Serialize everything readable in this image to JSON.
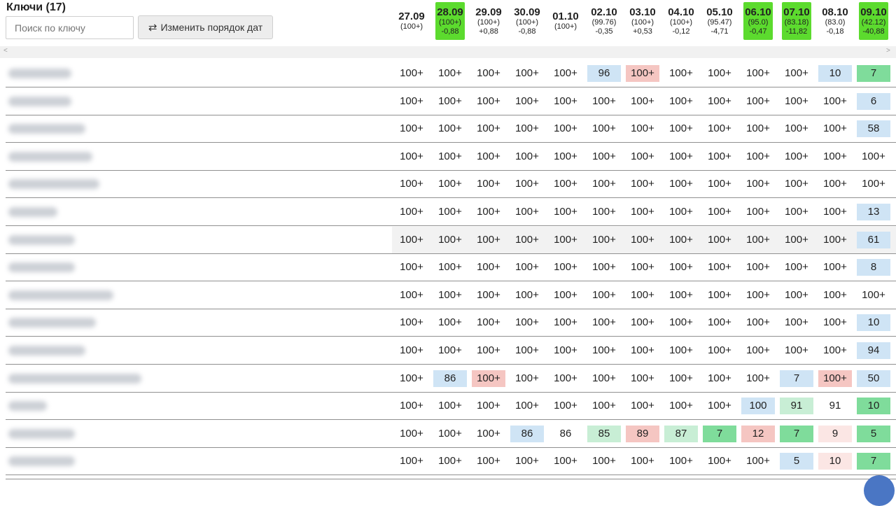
{
  "header": {
    "title": "Ключи (17)",
    "search_placeholder": "Поиск по ключу",
    "reorder_label": "Изменить порядок дат",
    "reorder_icon": "swap-arrows-icon"
  },
  "colors": {
    "highlight": "#5cdb2e",
    "blue": "#cfe4f5",
    "pink": "#f5c6c2",
    "light_green": "#c8eed5",
    "green": "#7fdc9b",
    "light_pink": "#fbe6e4"
  },
  "dates": [
    {
      "date": "27.09",
      "sub": "(100+)",
      "change": "",
      "highlight": false
    },
    {
      "date": "28.09",
      "sub": "(100+)",
      "change": "-0,88",
      "highlight": true
    },
    {
      "date": "29.09",
      "sub": "(100+)",
      "change": "+0,88",
      "highlight": false
    },
    {
      "date": "30.09",
      "sub": "(100+)",
      "change": "-0,88",
      "highlight": false
    },
    {
      "date": "01.10",
      "sub": "(100+)",
      "change": "",
      "highlight": false
    },
    {
      "date": "02.10",
      "sub": "(99.76)",
      "change": "-0,35",
      "highlight": false
    },
    {
      "date": "03.10",
      "sub": "(100+)",
      "change": "+0,53",
      "highlight": false
    },
    {
      "date": "04.10",
      "sub": "(100+)",
      "change": "-0,12",
      "highlight": false
    },
    {
      "date": "05.10",
      "sub": "(95.47)",
      "change": "-4,71",
      "highlight": false
    },
    {
      "date": "06.10",
      "sub": "(95.0)",
      "change": "-0,47",
      "highlight": true
    },
    {
      "date": "07.10",
      "sub": "(83.18)",
      "change": "-11,82",
      "highlight": true
    },
    {
      "date": "08.10",
      "sub": "(83.0)",
      "change": "-0,18",
      "highlight": false
    },
    {
      "date": "09.10",
      "sub": "(42.12)",
      "change": "-40,88",
      "highlight": true
    }
  ],
  "rows": [
    {
      "cells": [
        [
          "100+",
          ""
        ],
        [
          "100+",
          ""
        ],
        [
          "100+",
          ""
        ],
        [
          "100+",
          ""
        ],
        [
          "100+",
          ""
        ],
        [
          "96",
          "blue"
        ],
        [
          "100+",
          "pink"
        ],
        [
          "100+",
          ""
        ],
        [
          "100+",
          ""
        ],
        [
          "100+",
          ""
        ],
        [
          "100+",
          ""
        ],
        [
          "10",
          "blue"
        ],
        [
          "7",
          "green"
        ]
      ]
    },
    {
      "cells": [
        [
          "100+",
          ""
        ],
        [
          "100+",
          ""
        ],
        [
          "100+",
          ""
        ],
        [
          "100+",
          ""
        ],
        [
          "100+",
          ""
        ],
        [
          "100+",
          ""
        ],
        [
          "100+",
          ""
        ],
        [
          "100+",
          ""
        ],
        [
          "100+",
          ""
        ],
        [
          "100+",
          ""
        ],
        [
          "100+",
          ""
        ],
        [
          "100+",
          ""
        ],
        [
          "6",
          "blue"
        ]
      ]
    },
    {
      "cells": [
        [
          "100+",
          ""
        ],
        [
          "100+",
          ""
        ],
        [
          "100+",
          ""
        ],
        [
          "100+",
          ""
        ],
        [
          "100+",
          ""
        ],
        [
          "100+",
          ""
        ],
        [
          "100+",
          ""
        ],
        [
          "100+",
          ""
        ],
        [
          "100+",
          ""
        ],
        [
          "100+",
          ""
        ],
        [
          "100+",
          ""
        ],
        [
          "100+",
          ""
        ],
        [
          "58",
          "blue"
        ]
      ]
    },
    {
      "cells": [
        [
          "100+",
          ""
        ],
        [
          "100+",
          ""
        ],
        [
          "100+",
          ""
        ],
        [
          "100+",
          ""
        ],
        [
          "100+",
          ""
        ],
        [
          "100+",
          ""
        ],
        [
          "100+",
          ""
        ],
        [
          "100+",
          ""
        ],
        [
          "100+",
          ""
        ],
        [
          "100+",
          ""
        ],
        [
          "100+",
          ""
        ],
        [
          "100+",
          ""
        ],
        [
          "100+",
          ""
        ]
      ]
    },
    {
      "cells": [
        [
          "100+",
          ""
        ],
        [
          "100+",
          ""
        ],
        [
          "100+",
          ""
        ],
        [
          "100+",
          ""
        ],
        [
          "100+",
          ""
        ],
        [
          "100+",
          ""
        ],
        [
          "100+",
          ""
        ],
        [
          "100+",
          ""
        ],
        [
          "100+",
          ""
        ],
        [
          "100+",
          ""
        ],
        [
          "100+",
          ""
        ],
        [
          "100+",
          ""
        ],
        [
          "100+",
          ""
        ]
      ]
    },
    {
      "cells": [
        [
          "100+",
          ""
        ],
        [
          "100+",
          ""
        ],
        [
          "100+",
          ""
        ],
        [
          "100+",
          ""
        ],
        [
          "100+",
          ""
        ],
        [
          "100+",
          ""
        ],
        [
          "100+",
          ""
        ],
        [
          "100+",
          ""
        ],
        [
          "100+",
          ""
        ],
        [
          "100+",
          ""
        ],
        [
          "100+",
          ""
        ],
        [
          "100+",
          ""
        ],
        [
          "13",
          "blue"
        ]
      ]
    },
    {
      "hover": true,
      "cells": [
        [
          "100+",
          ""
        ],
        [
          "100+",
          ""
        ],
        [
          "100+",
          ""
        ],
        [
          "100+",
          ""
        ],
        [
          "100+",
          ""
        ],
        [
          "100+",
          ""
        ],
        [
          "100+",
          ""
        ],
        [
          "100+",
          ""
        ],
        [
          "100+",
          ""
        ],
        [
          "100+",
          ""
        ],
        [
          "100+",
          ""
        ],
        [
          "100+",
          ""
        ],
        [
          "61",
          "blue"
        ]
      ]
    },
    {
      "cells": [
        [
          "100+",
          ""
        ],
        [
          "100+",
          ""
        ],
        [
          "100+",
          ""
        ],
        [
          "100+",
          ""
        ],
        [
          "100+",
          ""
        ],
        [
          "100+",
          ""
        ],
        [
          "100+",
          ""
        ],
        [
          "100+",
          ""
        ],
        [
          "100+",
          ""
        ],
        [
          "100+",
          ""
        ],
        [
          "100+",
          ""
        ],
        [
          "100+",
          ""
        ],
        [
          "8",
          "blue"
        ]
      ]
    },
    {
      "cells": [
        [
          "100+",
          ""
        ],
        [
          "100+",
          ""
        ],
        [
          "100+",
          ""
        ],
        [
          "100+",
          ""
        ],
        [
          "100+",
          ""
        ],
        [
          "100+",
          ""
        ],
        [
          "100+",
          ""
        ],
        [
          "100+",
          ""
        ],
        [
          "100+",
          ""
        ],
        [
          "100+",
          ""
        ],
        [
          "100+",
          ""
        ],
        [
          "100+",
          ""
        ],
        [
          "100+",
          ""
        ]
      ]
    },
    {
      "cells": [
        [
          "100+",
          ""
        ],
        [
          "100+",
          ""
        ],
        [
          "100+",
          ""
        ],
        [
          "100+",
          ""
        ],
        [
          "100+",
          ""
        ],
        [
          "100+",
          ""
        ],
        [
          "100+",
          ""
        ],
        [
          "100+",
          ""
        ],
        [
          "100+",
          ""
        ],
        [
          "100+",
          ""
        ],
        [
          "100+",
          ""
        ],
        [
          "100+",
          ""
        ],
        [
          "10",
          "blue"
        ]
      ]
    },
    {
      "cells": [
        [
          "100+",
          ""
        ],
        [
          "100+",
          ""
        ],
        [
          "100+",
          ""
        ],
        [
          "100+",
          ""
        ],
        [
          "100+",
          ""
        ],
        [
          "100+",
          ""
        ],
        [
          "100+",
          ""
        ],
        [
          "100+",
          ""
        ],
        [
          "100+",
          ""
        ],
        [
          "100+",
          ""
        ],
        [
          "100+",
          ""
        ],
        [
          "100+",
          ""
        ],
        [
          "94",
          "blue"
        ]
      ]
    },
    {
      "cells": [
        [
          "100+",
          ""
        ],
        [
          "86",
          "blue"
        ],
        [
          "100+",
          "pink"
        ],
        [
          "100+",
          ""
        ],
        [
          "100+",
          ""
        ],
        [
          "100+",
          ""
        ],
        [
          "100+",
          ""
        ],
        [
          "100+",
          ""
        ],
        [
          "100+",
          ""
        ],
        [
          "100+",
          ""
        ],
        [
          "7",
          "blue"
        ],
        [
          "100+",
          "pink"
        ],
        [
          "50",
          "blue"
        ]
      ]
    },
    {
      "cells": [
        [
          "100+",
          ""
        ],
        [
          "100+",
          ""
        ],
        [
          "100+",
          ""
        ],
        [
          "100+",
          ""
        ],
        [
          "100+",
          ""
        ],
        [
          "100+",
          ""
        ],
        [
          "100+",
          ""
        ],
        [
          "100+",
          ""
        ],
        [
          "100+",
          ""
        ],
        [
          "100",
          "blue"
        ],
        [
          "91",
          "lgreen"
        ],
        [
          "91",
          ""
        ],
        [
          "10",
          "green"
        ]
      ]
    },
    {
      "cells": [
        [
          "100+",
          ""
        ],
        [
          "100+",
          ""
        ],
        [
          "100+",
          ""
        ],
        [
          "86",
          "blue"
        ],
        [
          "86",
          ""
        ],
        [
          "85",
          "lgreen"
        ],
        [
          "89",
          "pink"
        ],
        [
          "87",
          "lgreen"
        ],
        [
          "7",
          "green"
        ],
        [
          "12",
          "pink"
        ],
        [
          "7",
          "green"
        ],
        [
          "9",
          "lpink"
        ],
        [
          "5",
          "green"
        ]
      ]
    },
    {
      "cells": [
        [
          "100+",
          ""
        ],
        [
          "100+",
          ""
        ],
        [
          "100+",
          ""
        ],
        [
          "100+",
          ""
        ],
        [
          "100+",
          ""
        ],
        [
          "100+",
          ""
        ],
        [
          "100+",
          ""
        ],
        [
          "100+",
          ""
        ],
        [
          "100+",
          ""
        ],
        [
          "100+",
          ""
        ],
        [
          "5",
          "blue"
        ],
        [
          "10",
          "lpink"
        ],
        [
          "7",
          "green"
        ]
      ]
    }
  ]
}
